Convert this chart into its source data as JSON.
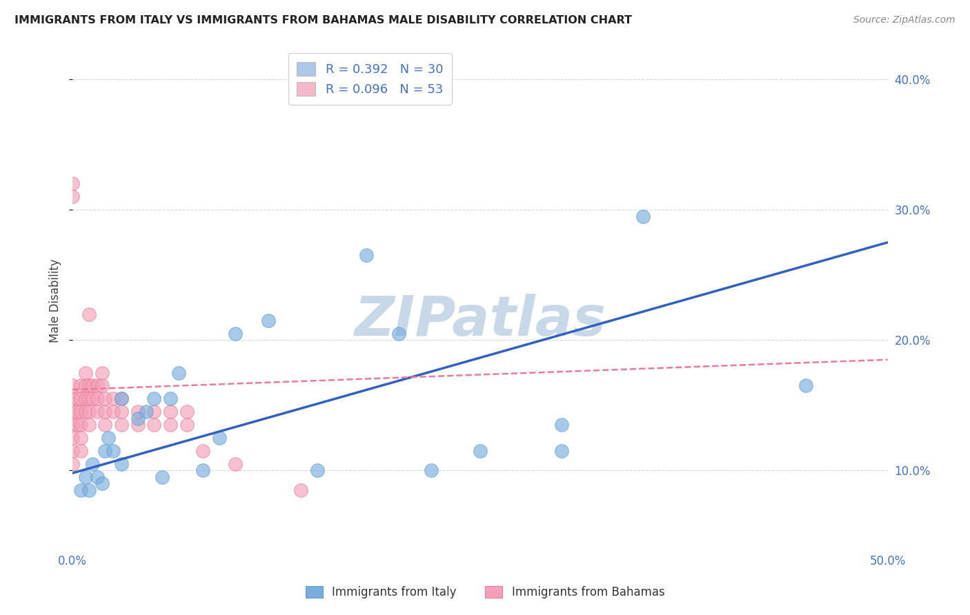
{
  "title": "IMMIGRANTS FROM ITALY VS IMMIGRANTS FROM BAHAMAS MALE DISABILITY CORRELATION CHART",
  "source": "Source: ZipAtlas.com",
  "ylabel": "Male Disability",
  "xlim": [
    0.0,
    0.5
  ],
  "ylim": [
    0.04,
    0.42
  ],
  "legend_1_label": "R = 0.392   N = 30",
  "legend_2_label": "R = 0.096   N = 53",
  "legend_1_color": "#aec6e8",
  "legend_2_color": "#f4b8c8",
  "series_italy": {
    "name": "Immigrants from Italy",
    "color": "#7aaddc",
    "edge_color": "#5b9fd4",
    "x": [
      0.005,
      0.008,
      0.01,
      0.012,
      0.015,
      0.018,
      0.02,
      0.022,
      0.025,
      0.03,
      0.03,
      0.04,
      0.045,
      0.05,
      0.055,
      0.06,
      0.065,
      0.08,
      0.09,
      0.1,
      0.12,
      0.15,
      0.18,
      0.2,
      0.22,
      0.25,
      0.3,
      0.3,
      0.35,
      0.45
    ],
    "y": [
      0.085,
      0.095,
      0.085,
      0.105,
      0.095,
      0.09,
      0.115,
      0.125,
      0.115,
      0.105,
      0.155,
      0.14,
      0.145,
      0.155,
      0.095,
      0.155,
      0.175,
      0.1,
      0.125,
      0.205,
      0.215,
      0.1,
      0.265,
      0.205,
      0.1,
      0.115,
      0.115,
      0.135,
      0.295,
      0.165
    ]
  },
  "series_bahamas": {
    "name": "Immigrants from Bahamas",
    "color": "#f4a0b8",
    "edge_color": "#e8799a",
    "x": [
      0.0,
      0.0,
      0.0,
      0.0,
      0.0,
      0.0,
      0.0,
      0.0,
      0.0,
      0.003,
      0.003,
      0.003,
      0.005,
      0.005,
      0.005,
      0.005,
      0.005,
      0.005,
      0.008,
      0.008,
      0.008,
      0.008,
      0.01,
      0.01,
      0.01,
      0.01,
      0.01,
      0.012,
      0.012,
      0.015,
      0.015,
      0.015,
      0.018,
      0.018,
      0.02,
      0.02,
      0.02,
      0.025,
      0.025,
      0.03,
      0.03,
      0.03,
      0.04,
      0.04,
      0.05,
      0.05,
      0.06,
      0.06,
      0.07,
      0.07,
      0.08,
      0.1,
      0.14
    ],
    "y": [
      0.155,
      0.145,
      0.135,
      0.125,
      0.115,
      0.105,
      0.165,
      0.32,
      0.31,
      0.135,
      0.145,
      0.155,
      0.165,
      0.155,
      0.145,
      0.135,
      0.125,
      0.115,
      0.175,
      0.165,
      0.155,
      0.145,
      0.22,
      0.165,
      0.155,
      0.145,
      0.135,
      0.165,
      0.155,
      0.165,
      0.155,
      0.145,
      0.175,
      0.165,
      0.155,
      0.145,
      0.135,
      0.155,
      0.145,
      0.155,
      0.145,
      0.135,
      0.145,
      0.135,
      0.145,
      0.135,
      0.145,
      0.135,
      0.145,
      0.135,
      0.115,
      0.105,
      0.085
    ]
  },
  "watermark_color": "#c8d8e8",
  "background_color": "#ffffff",
  "grid_color": "#d0d8e0",
  "italy_line_color": "#3060c0",
  "bahamas_line_color": "#e87a9a"
}
